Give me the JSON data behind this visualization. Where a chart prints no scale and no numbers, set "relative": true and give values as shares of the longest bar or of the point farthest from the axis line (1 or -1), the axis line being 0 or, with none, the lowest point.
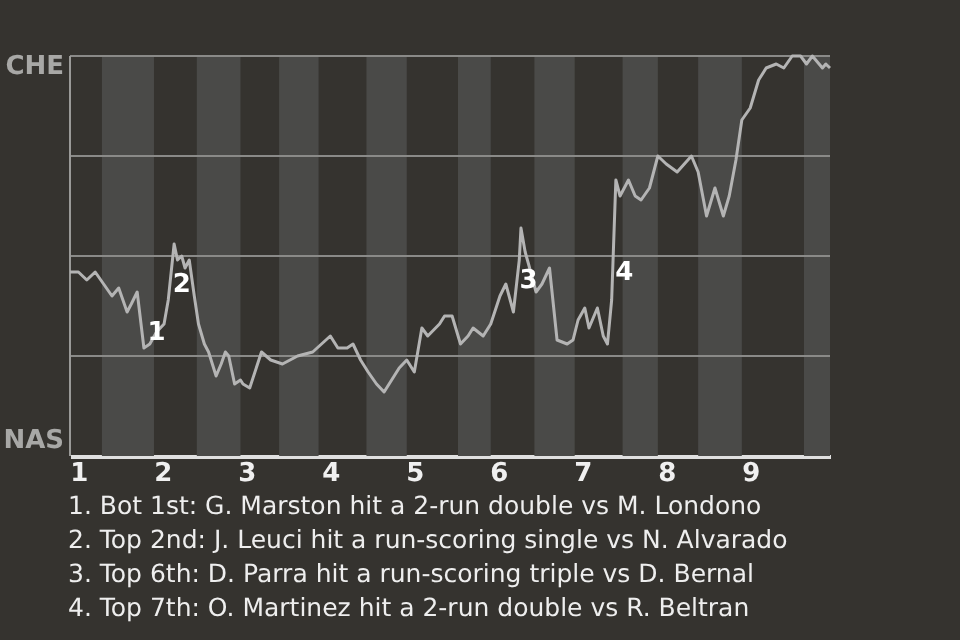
{
  "chart_data": {
    "type": "line",
    "relative": true,
    "color": "#b4b4b4",
    "x": [
      0.9,
      1.0,
      1.1,
      1.2,
      1.3,
      1.4,
      1.48,
      1.58,
      1.63,
      1.7,
      1.78,
      1.85,
      1.93,
      2.02,
      2.07,
      2.14,
      2.18,
      2.23,
      2.27,
      2.32,
      2.38,
      2.43,
      2.5,
      2.55,
      2.64,
      2.7,
      2.75,
      2.79,
      2.86,
      2.93,
      2.96,
      3.04,
      3.18,
      3.29,
      3.43,
      3.61,
      3.79,
      4.0,
      4.09,
      4.2,
      4.27,
      4.36,
      4.45,
      4.55,
      4.64,
      4.73,
      4.82,
      4.91,
      5.0,
      5.09,
      5.16,
      5.3,
      5.36,
      5.45,
      5.55,
      5.64,
      5.7,
      5.82,
      5.91,
      6.02,
      6.09,
      6.18,
      6.25,
      6.27,
      6.32,
      6.36,
      6.45,
      6.52,
      6.61,
      6.7,
      6.82,
      6.89,
      6.95,
      7.03,
      7.08,
      7.18,
      7.25,
      7.3,
      7.35,
      7.4,
      7.45,
      7.55,
      7.63,
      7.7,
      7.8,
      7.9,
      8.0,
      8.13,
      8.3,
      8.38,
      8.48,
      8.58,
      8.68,
      8.75,
      8.83,
      8.9,
      9.0,
      9.1,
      9.19,
      9.31,
      9.4,
      9.5,
      9.6,
      9.67,
      9.74,
      9.86,
      9.9,
      9.95
    ],
    "values": [
      0.46,
      0.46,
      0.44,
      0.46,
      0.43,
      0.4,
      0.42,
      0.36,
      0.38,
      0.41,
      0.27,
      0.28,
      0.31,
      0.33,
      0.39,
      0.53,
      0.49,
      0.5,
      0.47,
      0.49,
      0.4,
      0.33,
      0.28,
      0.26,
      0.2,
      0.23,
      0.26,
      0.25,
      0.18,
      0.19,
      0.18,
      0.17,
      0.26,
      0.24,
      0.23,
      0.25,
      0.26,
      0.3,
      0.27,
      0.27,
      0.28,
      0.24,
      0.21,
      0.18,
      0.16,
      0.19,
      0.22,
      0.24,
      0.21,
      0.32,
      0.3,
      0.33,
      0.35,
      0.35,
      0.28,
      0.3,
      0.32,
      0.3,
      0.33,
      0.4,
      0.43,
      0.36,
      0.49,
      0.57,
      0.51,
      0.48,
      0.41,
      0.43,
      0.47,
      0.29,
      0.28,
      0.29,
      0.34,
      0.37,
      0.32,
      0.37,
      0.3,
      0.28,
      0.39,
      0.69,
      0.65,
      0.69,
      0.65,
      0.64,
      0.67,
      0.75,
      0.73,
      0.71,
      0.75,
      0.71,
      0.6,
      0.67,
      0.6,
      0.65,
      0.74,
      0.84,
      0.87,
      0.94,
      0.97,
      0.98,
      0.97,
      1.0,
      1.0,
      0.98,
      1.0,
      0.97,
      0.98,
      0.97
    ],
    "xlim": [
      0.9,
      9.95
    ],
    "xticks": [
      1,
      2,
      3,
      4,
      5,
      6,
      7,
      8,
      9
    ],
    "bands": [
      {
        "axis": "x",
        "from": 1.28,
        "to": 1.9,
        "color": "#4a4a48"
      },
      {
        "axis": "x",
        "from": 2.41,
        "to": 2.93,
        "color": "#4a4a48"
      },
      {
        "axis": "x",
        "from": 3.39,
        "to": 3.86,
        "color": "#4a4a48"
      },
      {
        "axis": "x",
        "from": 4.43,
        "to": 4.91,
        "color": "#4a4a48"
      },
      {
        "axis": "x",
        "from": 5.52,
        "to": 5.91,
        "color": "#4a4a48"
      },
      {
        "axis": "x",
        "from": 6.43,
        "to": 6.91,
        "color": "#4a4a48"
      },
      {
        "axis": "x",
        "from": 7.48,
        "to": 7.9,
        "color": "#4a4a48"
      },
      {
        "axis": "x",
        "from": 8.38,
        "to": 8.9,
        "color": "#4a4a48"
      },
      {
        "axis": "x",
        "from": 9.64,
        "to": 9.95,
        "color": "#4a4a48"
      }
    ],
    "grid": "y",
    "marker": "none",
    "line_style": "solid",
    "annotations": [
      "CHE",
      "NAS",
      {
        "text": "1",
        "x": 1.93,
        "y": 0.31
      },
      {
        "text": "2",
        "x": 2.23,
        "y": 0.43
      },
      {
        "text": "3",
        "x": 6.36,
        "y": 0.44
      },
      {
        "text": "4",
        "x": 7.5,
        "y": 0.46
      },
      "1. Bot 1st: G. Marston hit a 2-run double vs M. Londono",
      "2. Top 2nd: J. Leuci hit a run-scoring single vs N. Alvarado",
      "3. Top 6th: D. Parra hit a run-scoring triple vs D. Bernal",
      "4. Top 7th: O. Martinez hit a 2-run double vs R. Beltran"
    ]
  }
}
